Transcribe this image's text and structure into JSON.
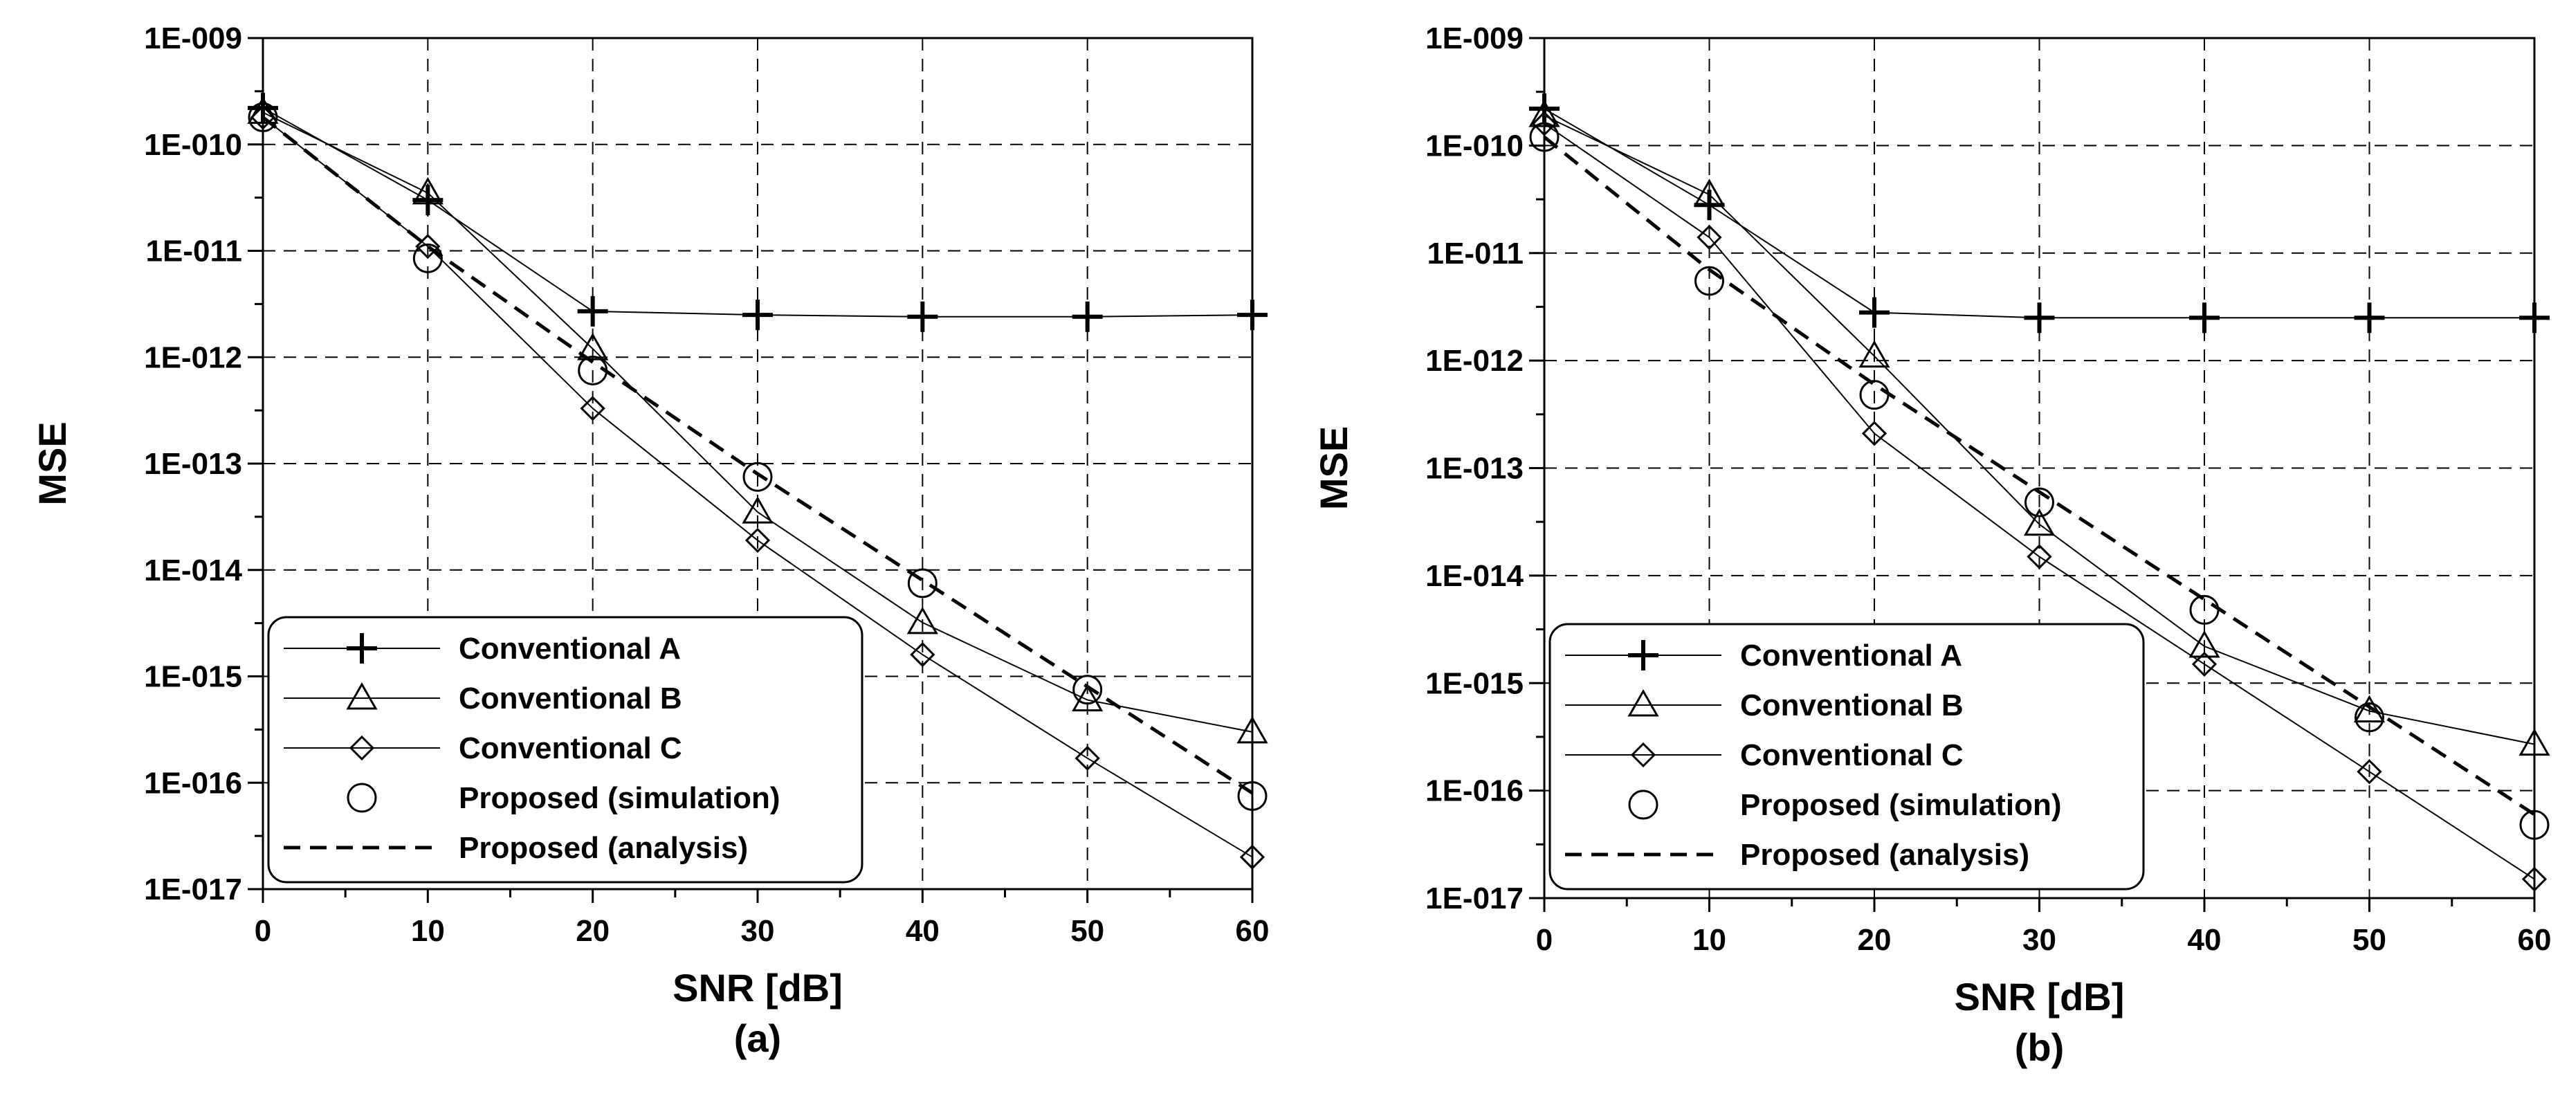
{
  "chart_data": [
    {
      "type": "line",
      "panel_label": "(a)",
      "xlabel": "SNR [dB]",
      "ylabel": "MSE",
      "yscale": "log",
      "xlim": [
        0,
        60
      ],
      "ylim_exp": [
        -17,
        -9
      ],
      "x_ticks": [
        "0",
        "10",
        "20",
        "30",
        "40",
        "50",
        "60"
      ],
      "y_ticks": [
        "1E-017",
        "1E-016",
        "1E-015",
        "1E-014",
        "1E-013",
        "1E-012",
        "1E-011",
        "1E-010",
        "1E-009"
      ],
      "grid": true,
      "legend_position": "bottom-left",
      "x": [
        0,
        10,
        20,
        30,
        40,
        50,
        60
      ],
      "series": [
        {
          "name": "Conventional A",
          "marker": "plus",
          "line": "solid",
          "values": [
            2.2e-10,
            3e-11,
            2.7e-12,
            2.5e-12,
            2.4e-12,
            2.4e-12,
            2.5e-12
          ]
        },
        {
          "name": "Conventional B",
          "marker": "triangle",
          "line": "solid",
          "values": [
            2e-10,
            3.5e-11,
            1.2e-12,
            3.5e-14,
            3.2e-15,
            6e-16,
            3e-16
          ]
        },
        {
          "name": "Conventional C",
          "marker": "diamond",
          "line": "solid",
          "values": [
            1.8e-10,
            1.1e-11,
            3.3e-13,
            1.9e-14,
            1.6e-15,
            1.7e-16,
            2e-17
          ]
        },
        {
          "name": "Proposed (simulation)",
          "marker": "circle",
          "line": "none",
          "values": [
            1.8e-10,
            8.5e-12,
            7.5e-13,
            7.5e-14,
            7.5e-15,
            7.5e-16,
            7.5e-17
          ]
        },
        {
          "name": "Proposed (analysis)",
          "marker": "none",
          "line": "dashed",
          "values": [
            1.8e-10,
            1.1e-11,
            9e-13,
            8e-14,
            8e-15,
            8e-16,
            8e-17
          ]
        }
      ]
    },
    {
      "type": "line",
      "panel_label": "(b)",
      "xlabel": "SNR [dB]",
      "ylabel": "MSE",
      "yscale": "log",
      "xlim": [
        0,
        60
      ],
      "ylim_exp": [
        -17,
        -9
      ],
      "x_ticks": [
        "0",
        "10",
        "20",
        "30",
        "40",
        "50",
        "60"
      ],
      "y_ticks": [
        "1E-017",
        "1E-016",
        "1E-015",
        "1E-014",
        "1E-013",
        "1E-012",
        "1E-011",
        "1E-010",
        "1E-009"
      ],
      "grid": true,
      "legend_position": "bottom-left",
      "x": [
        0,
        10,
        20,
        30,
        40,
        50,
        60
      ],
      "series": [
        {
          "name": "Conventional A",
          "marker": "plus",
          "line": "solid",
          "values": [
            2.2e-10,
            2.8e-11,
            2.8e-12,
            2.5e-12,
            2.5e-12,
            2.5e-12,
            2.5e-12
          ]
        },
        {
          "name": "Conventional B",
          "marker": "triangle",
          "line": "solid",
          "values": [
            1.9e-10,
            3.5e-11,
            1.1e-12,
            3e-14,
            2.2e-15,
            5.5e-16,
            2.7e-16
          ]
        },
        {
          "name": "Conventional C",
          "marker": "diamond",
          "line": "solid",
          "values": [
            1.6e-10,
            1.4e-11,
            2.1e-13,
            1.5e-14,
            1.5e-15,
            1.5e-16,
            1.5e-17
          ]
        },
        {
          "name": "Proposed (simulation)",
          "marker": "circle",
          "line": "none",
          "values": [
            1.2e-10,
            5.5e-12,
            4.8e-13,
            4.8e-14,
            4.8e-15,
            4.8e-16,
            4.8e-17
          ]
        },
        {
          "name": "Proposed (analysis)",
          "marker": "none",
          "line": "dashed",
          "values": [
            1.2e-10,
            7e-12,
            6e-13,
            6e-14,
            6e-15,
            6e-16,
            6e-17
          ]
        }
      ]
    }
  ]
}
